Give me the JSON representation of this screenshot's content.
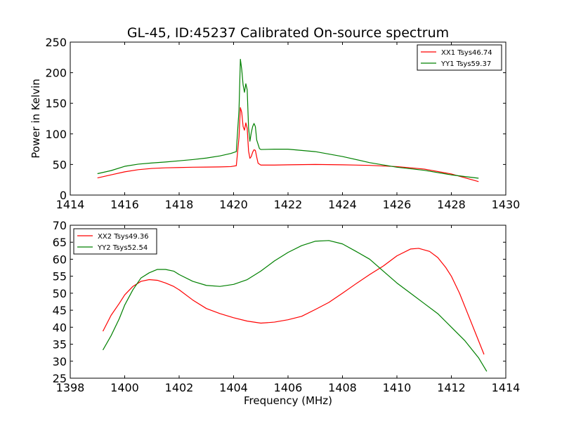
{
  "figure": {
    "title": "GL-45, ID:45237 Calibrated On-source spectrum",
    "xlabel": "Frequency (MHz)"
  },
  "chart_data": [
    {
      "type": "line",
      "title": "GL-45, ID:45237 Calibrated On-source spectrum",
      "xlabel": "",
      "ylabel": "Power in Kelvin",
      "xlim": [
        1414,
        1430
      ],
      "ylim": [
        0,
        250
      ],
      "xticks": [
        1414,
        1416,
        1418,
        1420,
        1422,
        1424,
        1426,
        1428,
        1430
      ],
      "yticks": [
        0,
        50,
        100,
        150,
        200,
        250
      ],
      "grid": false,
      "legend_position": "top-right",
      "series": [
        {
          "name": "XX1 Tsys46.74",
          "color": "#ff0000",
          "points": [
            [
              1415.0,
              28
            ],
            [
              1415.5,
              33
            ],
            [
              1416.0,
              38
            ],
            [
              1416.5,
              41.5
            ],
            [
              1417.0,
              43.5
            ],
            [
              1417.5,
              44.5
            ],
            [
              1418.0,
              45
            ],
            [
              1418.5,
              45.5
            ],
            [
              1419.0,
              45.7
            ],
            [
              1419.5,
              46
            ],
            [
              1419.9,
              46.5
            ],
            [
              1420.1,
              48
            ],
            [
              1420.2,
              95
            ],
            [
              1420.25,
              143
            ],
            [
              1420.3,
              135
            ],
            [
              1420.35,
              112
            ],
            [
              1420.4,
              106
            ],
            [
              1420.45,
              118
            ],
            [
              1420.5,
              109
            ],
            [
              1420.55,
              72
            ],
            [
              1420.6,
              60
            ],
            [
              1420.65,
              63
            ],
            [
              1420.7,
              70
            ],
            [
              1420.75,
              74
            ],
            [
              1420.8,
              73
            ],
            [
              1420.85,
              62
            ],
            [
              1420.9,
              52
            ],
            [
              1421.0,
              49
            ],
            [
              1421.5,
              49
            ],
            [
              1422.0,
              49.5
            ],
            [
              1423.0,
              50
            ],
            [
              1424.0,
              49.5
            ],
            [
              1425.0,
              48.5
            ],
            [
              1426.0,
              46.5
            ],
            [
              1427.0,
              42.5
            ],
            [
              1428.0,
              34.5
            ],
            [
              1429.0,
              22
            ]
          ]
        },
        {
          "name": "YY1 Tsys59.37",
          "color": "#008000",
          "points": [
            [
              1415.0,
              35
            ],
            [
              1415.5,
              40
            ],
            [
              1416.0,
              47
            ],
            [
              1416.5,
              50.5
            ],
            [
              1417.0,
              52.5
            ],
            [
              1417.5,
              54
            ],
            [
              1418.0,
              56
            ],
            [
              1418.5,
              58
            ],
            [
              1419.0,
              60.5
            ],
            [
              1419.5,
              64
            ],
            [
              1419.9,
              68
            ],
            [
              1420.1,
              71
            ],
            [
              1420.2,
              140
            ],
            [
              1420.25,
              222
            ],
            [
              1420.3,
              205
            ],
            [
              1420.35,
              180
            ],
            [
              1420.4,
              168
            ],
            [
              1420.45,
              182
            ],
            [
              1420.5,
              172
            ],
            [
              1420.55,
              110
            ],
            [
              1420.6,
              88
            ],
            [
              1420.65,
              102
            ],
            [
              1420.7,
              112
            ],
            [
              1420.75,
              117
            ],
            [
              1420.8,
              112
            ],
            [
              1420.85,
              90
            ],
            [
              1420.95,
              76
            ],
            [
              1421.0,
              74.5
            ],
            [
              1421.5,
              75
            ],
            [
              1422.0,
              75
            ],
            [
              1423.0,
              71
            ],
            [
              1424.0,
              63
            ],
            [
              1425.0,
              53
            ],
            [
              1426.0,
              45.5
            ],
            [
              1427.0,
              40.5
            ],
            [
              1428.0,
              33
            ],
            [
              1429.0,
              27.5
            ]
          ]
        }
      ]
    },
    {
      "type": "line",
      "title": "",
      "xlabel": "Frequency (MHz)",
      "ylabel": "",
      "xlim": [
        1398,
        1414
      ],
      "ylim": [
        25,
        70
      ],
      "xticks": [
        1398,
        1400,
        1402,
        1404,
        1406,
        1408,
        1410,
        1412,
        1414
      ],
      "yticks": [
        25,
        30,
        35,
        40,
        45,
        50,
        55,
        60,
        65,
        70
      ],
      "grid": false,
      "legend_position": "top-left",
      "series": [
        {
          "name": "XX2 Tsys49.36",
          "color": "#ff0000",
          "points": [
            [
              1399.2,
              38.8
            ],
            [
              1399.5,
              43.5
            ],
            [
              1399.8,
              47
            ],
            [
              1400.0,
              49.5
            ],
            [
              1400.3,
              52
            ],
            [
              1400.6,
              53.5
            ],
            [
              1400.9,
              54
            ],
            [
              1401.2,
              53.8
            ],
            [
              1401.5,
              53
            ],
            [
              1401.8,
              52
            ],
            [
              1402.0,
              51
            ],
            [
              1402.5,
              48
            ],
            [
              1403.0,
              45.5
            ],
            [
              1403.5,
              44
            ],
            [
              1404.0,
              42.8
            ],
            [
              1404.5,
              41.8
            ],
            [
              1405.0,
              41.2
            ],
            [
              1405.5,
              41.5
            ],
            [
              1406.0,
              42.2
            ],
            [
              1406.5,
              43.2
            ],
            [
              1407.0,
              45.2
            ],
            [
              1407.5,
              47.3
            ],
            [
              1408.0,
              50
            ],
            [
              1408.5,
              52.8
            ],
            [
              1409.0,
              55.5
            ],
            [
              1409.5,
              58
            ],
            [
              1410.0,
              61
            ],
            [
              1410.5,
              63
            ],
            [
              1410.8,
              63.2
            ],
            [
              1411.2,
              62.3
            ],
            [
              1411.5,
              60.5
            ],
            [
              1411.8,
              57.5
            ],
            [
              1412.0,
              55
            ],
            [
              1412.3,
              50
            ],
            [
              1412.6,
              44
            ],
            [
              1412.9,
              38
            ],
            [
              1413.2,
              32
            ]
          ]
        },
        {
          "name": "YY2 Tsys52.54",
          "color": "#008000",
          "points": [
            [
              1399.2,
              33.3
            ],
            [
              1399.5,
              37.5
            ],
            [
              1399.8,
              42.5
            ],
            [
              1400.0,
              46.5
            ],
            [
              1400.3,
              51
            ],
            [
              1400.6,
              54.5
            ],
            [
              1400.9,
              56
            ],
            [
              1401.2,
              57
            ],
            [
              1401.5,
              57
            ],
            [
              1401.8,
              56.5
            ],
            [
              1402.0,
              55.5
            ],
            [
              1402.5,
              53.5
            ],
            [
              1403.0,
              52.3
            ],
            [
              1403.5,
              52
            ],
            [
              1404.0,
              52.6
            ],
            [
              1404.5,
              54
            ],
            [
              1405.0,
              56.5
            ],
            [
              1405.5,
              59.5
            ],
            [
              1406.0,
              62
            ],
            [
              1406.5,
              64
            ],
            [
              1407.0,
              65.3
            ],
            [
              1407.5,
              65.5
            ],
            [
              1408.0,
              64.5
            ],
            [
              1408.5,
              62.3
            ],
            [
              1409.0,
              60
            ],
            [
              1409.5,
              56.5
            ],
            [
              1410.0,
              53
            ],
            [
              1410.5,
              50
            ],
            [
              1411.0,
              47
            ],
            [
              1411.5,
              44
            ],
            [
              1412.0,
              40
            ],
            [
              1412.5,
              36
            ],
            [
              1413.0,
              31
            ],
            [
              1413.3,
              27
            ]
          ]
        }
      ]
    }
  ]
}
